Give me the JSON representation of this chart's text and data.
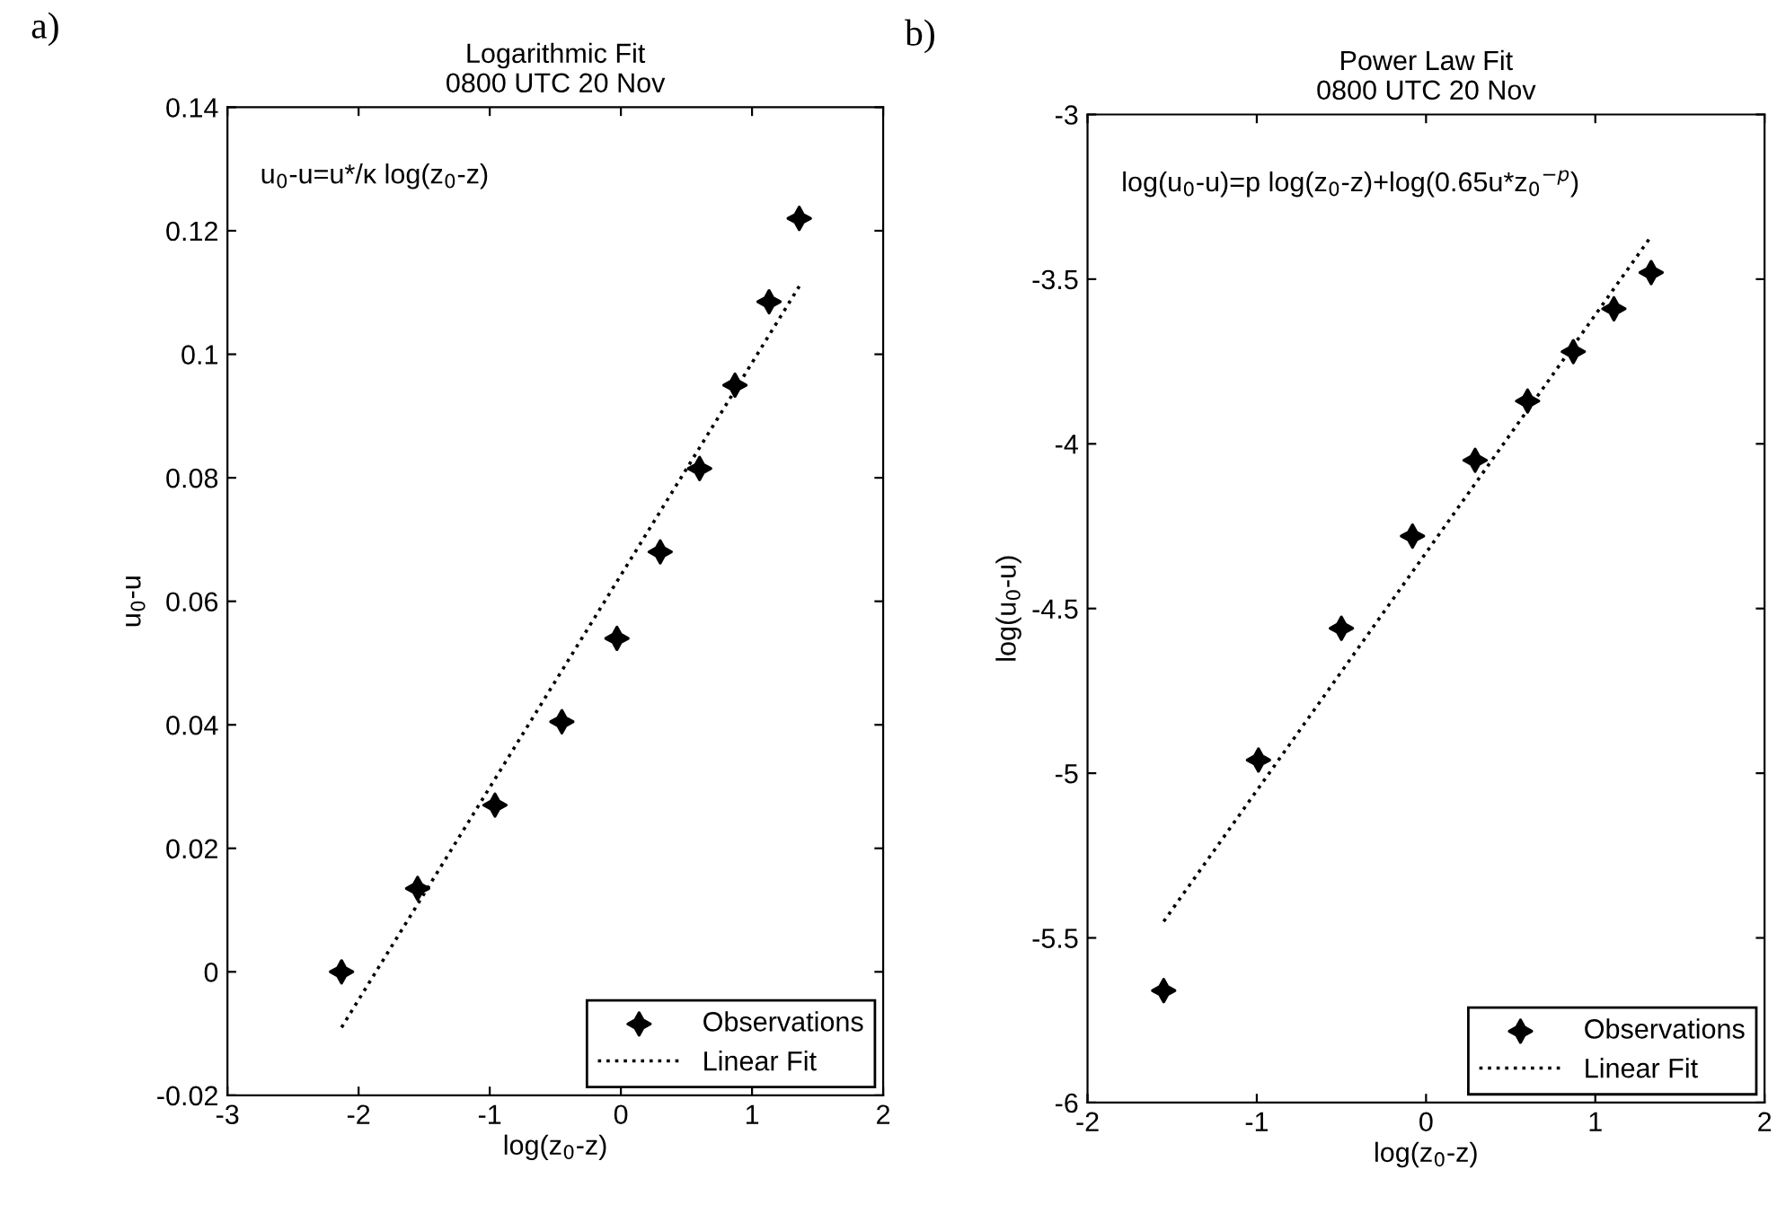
{
  "chart_data": [
    {
      "type": "scatter",
      "title": "Logarithmic Fit",
      "subtitle": "0800 UTC 20 Nov",
      "xlabel": "log(z$_{0}$-z)",
      "ylabel": "u$_{0}$-u",
      "annotations": [
        "a)",
        "u$_{0}$-u=u*/κ log(z$_{0}$-z)"
      ],
      "xlim": [
        -3,
        2
      ],
      "xticks": [
        -3,
        -2,
        -1,
        0,
        1,
        2
      ],
      "ylim": [
        -0.02,
        0.14
      ],
      "yticks": [
        -0.02,
        0,
        0.02,
        0.04,
        0.06,
        0.08,
        0.1,
        0.12,
        0.14
      ],
      "grid": false,
      "legend": "bottom right",
      "series": [
        {
          "name": "Observations",
          "marker": "star",
          "color": "#000000",
          "x": [
            -2.13,
            -1.55,
            -0.96,
            -0.45,
            -0.03,
            0.3,
            0.6,
            0.87,
            1.13,
            1.36
          ],
          "values": [
            0.0,
            0.0135,
            0.027,
            0.0405,
            0.054,
            0.068,
            0.0815,
            0.095,
            0.1085,
            0.122
          ]
        },
        {
          "name": "Linear Fit",
          "type": "line",
          "line_style": "dotted",
          "marker": "none",
          "color": "#000000",
          "x": [
            -2.13,
            1.36
          ],
          "values": [
            -0.009,
            0.111
          ]
        }
      ]
    },
    {
      "type": "scatter",
      "title": "Power Law Fit",
      "subtitle": "0800 UTC 20 Nov",
      "xlabel": "log(z$_{0}$-z)",
      "ylabel": "log(u$_{0}$-u)",
      "annotations": [
        "b)",
        "log(u$_{0}$-u)=p log(z$_{0}$-z)+log(0.65u*z$_{0}$$^{−p}$)"
      ],
      "xlim": [
        -2,
        2
      ],
      "xticks": [
        -2,
        -1,
        0,
        1,
        2
      ],
      "ylim": [
        -6,
        -3
      ],
      "yticks": [
        -6,
        -5.5,
        -5,
        -4.5,
        -4,
        -3.5,
        -3
      ],
      "grid": false,
      "legend": "bottom right",
      "series": [
        {
          "name": "Observations",
          "marker": "star",
          "color": "#000000",
          "x": [
            -1.55,
            -0.99,
            -0.5,
            -0.08,
            0.29,
            0.6,
            0.87,
            1.11,
            1.33
          ],
          "values": [
            -5.66,
            -4.96,
            -4.56,
            -4.28,
            -4.05,
            -3.87,
            -3.72,
            -3.59,
            -3.48
          ]
        },
        {
          "name": "Linear Fit",
          "type": "line",
          "line_style": "dotted",
          "marker": "none",
          "color": "#000000",
          "x": [
            -1.55,
            1.33
          ],
          "values": [
            -5.45,
            -3.37
          ]
        }
      ]
    }
  ]
}
